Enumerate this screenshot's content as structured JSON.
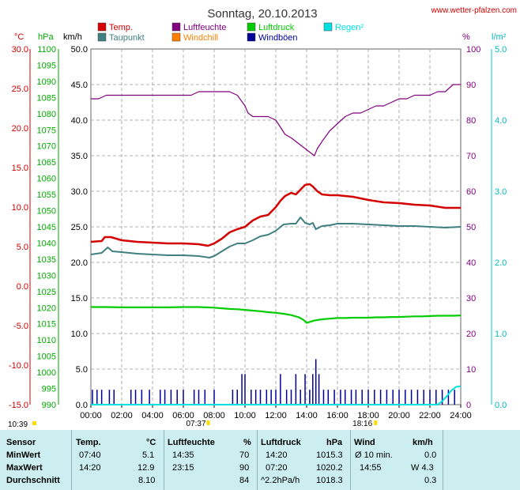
{
  "header": {
    "title": "Sonntag, 20.10.2013",
    "site": "www.wetter-pfalzen.com"
  },
  "legend": [
    {
      "label": "Temp.",
      "color": "#d40000"
    },
    {
      "label": "Luftfeuchte",
      "color": "#800080"
    },
    {
      "label": "Luftdruck",
      "color": "#00cc00"
    },
    {
      "label": "Regen²",
      "color": "#00e0e0"
    },
    {
      "label": "Taupunkt",
      "color": "#3f7f7f"
    },
    {
      "label": "Windchill",
      "color": "#ff8000"
    },
    {
      "label": "Windböen",
      "color": "#000099"
    }
  ],
  "axis_units": {
    "temp": "°C",
    "pressure": "hPa",
    "wind": "km/h",
    "humidity": "%",
    "rain": "l/m²"
  },
  "sun": {
    "sunrise_label": "07:37",
    "sunset_label": "18:16",
    "left_time": "10:39"
  },
  "chart_data": {
    "type": "line",
    "x_unit": "hours",
    "xlim": [
      0,
      24
    ],
    "x_ticks": [
      "00:00",
      "02:00",
      "04:00",
      "06:00",
      "08:00",
      "10:00",
      "12:00",
      "14:00",
      "16:00",
      "18:00",
      "20:00",
      "22:00",
      "24:00"
    ],
    "axes": {
      "temp": {
        "range": [
          -15,
          30
        ],
        "ticks": [
          "30.0",
          "25.0",
          "20.0",
          "15.0",
          "10.0",
          "5.0",
          "0.0",
          "-5.0",
          "-10.0",
          "-15.0"
        ],
        "color": "#d40000"
      },
      "pressure": {
        "range": [
          990,
          1100
        ],
        "ticks": [
          "1100",
          "1095",
          "1090",
          "1085",
          "1080",
          "1075",
          "1070",
          "1065",
          "1060",
          "1055",
          "1050",
          "1045",
          "1040",
          "1035",
          "1030",
          "1025",
          "1020",
          "1015",
          "1010",
          "1005",
          "1000",
          "995",
          "990"
        ],
        "color": "#00aa00"
      },
      "wind": {
        "range": [
          0,
          50
        ],
        "ticks": [
          "50.0",
          "45.0",
          "40.0",
          "35.0",
          "30.0",
          "25.0",
          "20.0",
          "15.0",
          "10.0",
          "5.0",
          "0.0"
        ],
        "color": "#000000"
      },
      "humidity": {
        "range": [
          0,
          100
        ],
        "ticks": [
          "100",
          "90",
          "80",
          "70",
          "60",
          "50",
          "40",
          "30",
          "20",
          "10",
          "0"
        ],
        "color": "#800080"
      },
      "rain": {
        "range": [
          0,
          5
        ],
        "ticks": [
          "5.0",
          "4.0",
          "3.0",
          "2.0",
          "1.0",
          "0.0"
        ],
        "color": "#00cccc"
      }
    },
    "series": [
      {
        "name": "Temp.",
        "axis": "temp",
        "color": "#d40000",
        "x": [
          0,
          0.7,
          0.9,
          1.3,
          2,
          3,
          4,
          5,
          6,
          7,
          7.6,
          8,
          8.5,
          9,
          9.5,
          10,
          10.5,
          11,
          11.5,
          12,
          12.3,
          12.6,
          13,
          13.3,
          13.6,
          13.9,
          14.2,
          14.4,
          14.7,
          15,
          15.5,
          16,
          17,
          18,
          19,
          20,
          21,
          22,
          23,
          24
        ],
        "y": [
          5.6,
          5.7,
          6.2,
          6.2,
          5.8,
          5.6,
          5.5,
          5.4,
          5.4,
          5.3,
          5.1,
          5.4,
          6.0,
          6.8,
          7.2,
          7.5,
          8.3,
          8.8,
          9.0,
          10.0,
          10.8,
          11.4,
          11.8,
          11.6,
          12.2,
          12.8,
          12.9,
          12.6,
          12.0,
          11.6,
          11.5,
          11.5,
          11.3,
          10.9,
          10.6,
          10.5,
          10.3,
          10.2,
          9.9,
          9.9
        ]
      },
      {
        "name": "Taupunkt",
        "axis": "temp",
        "color": "#3f7f7f",
        "x": [
          0,
          0.7,
          1.1,
          1.4,
          2,
          3,
          4,
          5,
          6,
          7,
          7.7,
          8,
          8.5,
          9,
          9.5,
          10,
          10.5,
          11,
          11.5,
          12,
          12.5,
          13,
          13.3,
          13.6,
          13.9,
          14.2,
          14.4,
          14.6,
          15,
          15.5,
          16,
          17,
          18,
          19,
          20,
          21,
          22,
          23,
          24
        ],
        "y": [
          4.0,
          4.2,
          4.9,
          4.4,
          4.3,
          4.1,
          4.0,
          3.9,
          3.9,
          3.8,
          3.6,
          3.8,
          4.4,
          5.0,
          5.4,
          5.4,
          5.8,
          6.3,
          6.5,
          7.0,
          7.8,
          7.9,
          7.9,
          8.7,
          8.0,
          7.8,
          8.0,
          7.2,
          7.6,
          7.7,
          7.9,
          7.9,
          7.8,
          7.7,
          7.6,
          7.6,
          7.5,
          7.4,
          7.5
        ]
      },
      {
        "name": "Luftfeuchte",
        "axis": "humidity",
        "color": "#800080",
        "x": [
          0,
          0.5,
          1,
          1.5,
          2,
          3,
          4,
          5,
          6,
          6.5,
          7,
          7.5,
          8,
          9,
          9.5,
          10,
          10.2,
          10.5,
          11,
          11.5,
          12,
          12.3,
          12.6,
          13,
          13.3,
          13.6,
          13.9,
          14.2,
          14.5,
          14.7,
          15,
          15.5,
          16,
          16.5,
          17,
          17.5,
          18,
          18.5,
          19,
          19.5,
          20,
          20.5,
          21,
          21.5,
          22,
          22.5,
          23,
          23.5,
          24
        ],
        "y": [
          86,
          86,
          87,
          87,
          87,
          87,
          87,
          87,
          87,
          87,
          88,
          88,
          88,
          88,
          87,
          84,
          82,
          81,
          81,
          81,
          80,
          78,
          76,
          75,
          74,
          73,
          72,
          71,
          70,
          72,
          74,
          77,
          79,
          81,
          82,
          82,
          83,
          84,
          84,
          85,
          86,
          86,
          87,
          87,
          87,
          88,
          88,
          90,
          90
        ]
      },
      {
        "name": "Luftdruck",
        "axis": "pressure",
        "color": "#00cc00",
        "x": [
          0,
          1,
          2,
          3,
          4,
          5,
          6,
          7,
          7.5,
          8,
          8.5,
          9,
          9.5,
          10,
          10.5,
          11,
          11.5,
          12,
          12.5,
          13,
          13.5,
          13.8,
          14,
          14.2,
          14.5,
          15,
          15.5,
          16,
          16.5,
          17,
          17.5,
          18,
          18.5,
          19,
          19.5,
          20,
          20.5,
          21,
          21.5,
          22,
          22.5,
          23,
          23.5,
          24
        ],
        "y": [
          1020.2,
          1020.2,
          1020.1,
          1020.1,
          1020.1,
          1020.1,
          1020.2,
          1020.2,
          1020.1,
          1020.0,
          1019.8,
          1019.6,
          1019.5,
          1019.3,
          1019.1,
          1018.9,
          1018.6,
          1018.4,
          1018.1,
          1017.7,
          1017.0,
          1016.2,
          1015.3,
          1015.6,
          1016.0,
          1016.4,
          1016.6,
          1016.8,
          1016.8,
          1016.9,
          1016.9,
          1016.9,
          1017.0,
          1017.0,
          1017.1,
          1017.1,
          1017.2,
          1017.3,
          1017.3,
          1017.4,
          1017.5,
          1017.5,
          1017.5,
          1017.6
        ]
      },
      {
        "name": "Windböen",
        "axis": "wind",
        "color": "#000099",
        "style": "bars",
        "x": [
          0.1,
          0.4,
          0.7,
          1.2,
          1.5,
          2.6,
          2.9,
          3.3,
          3.8,
          4.5,
          4.8,
          5.2,
          5.6,
          6.0,
          6.7,
          7.0,
          7.4,
          8.0,
          9.2,
          9.5,
          9.8,
          10.0,
          10.4,
          10.7,
          11.0,
          11.4,
          11.7,
          12.0,
          12.3,
          12.7,
          13.0,
          13.3,
          13.6,
          13.9,
          14.2,
          14.4,
          14.6,
          14.8,
          15.1,
          15.4,
          15.8,
          16.2,
          16.5,
          16.9,
          17.2,
          17.6,
          18.0,
          18.4,
          18.8,
          19.2,
          19.6,
          20.0,
          20.4,
          20.8,
          21.2,
          21.6,
          22.0,
          22.4,
          22.8,
          23.2,
          23.6
        ],
        "y": [
          2.1,
          2.1,
          2.1,
          2.1,
          2.1,
          2.1,
          2.1,
          2.1,
          2.1,
          2.1,
          2.1,
          2.1,
          2.1,
          2.1,
          2.1,
          2.1,
          2.1,
          2.1,
          2.1,
          2.1,
          4.3,
          4.3,
          2.1,
          2.1,
          2.1,
          2.1,
          2.1,
          2.1,
          4.3,
          2.1,
          2.1,
          4.3,
          2.1,
          4.3,
          2.1,
          4.3,
          6.4,
          4.3,
          2.1,
          2.1,
          2.1,
          2.1,
          2.1,
          2.1,
          2.1,
          2.1,
          2.1,
          2.1,
          2.1,
          2.1,
          2.1,
          2.1,
          2.1,
          2.1,
          2.1,
          2.1,
          2.1,
          2.1,
          2.1,
          2.1,
          2.1
        ]
      },
      {
        "name": "Regen²",
        "axis": "rain",
        "color": "#00e0e0",
        "x": [
          0,
          22.5,
          22.8,
          23.1,
          23.4,
          23.7,
          24
        ],
        "y": [
          0,
          0,
          0.05,
          0.12,
          0.2,
          0.25,
          0.26
        ]
      }
    ]
  },
  "table": {
    "headers": [
      "Sensor",
      "Temp.",
      "°C",
      "Luftfeuchte",
      "%",
      "Luftdruck",
      "hPa",
      "Wind",
      "km/h"
    ],
    "rows": [
      {
        "label": "MinWert",
        "t_time": "07:40",
        "t_val": "5.1",
        "h_time": "14:35",
        "h_val": "70",
        "p_time": "14:20",
        "p_val": "1015.3",
        "w_time": "Ø 10 min.",
        "w_val": "0.0"
      },
      {
        "label": "MaxWert",
        "t_time": "14:20",
        "t_val": "12.9",
        "h_time": "23:15",
        "h_val": "90",
        "p_time": "07:20",
        "p_val": "1020.2",
        "w_time": "14:55",
        "w_val": "W 4.3"
      },
      {
        "label": "Durchschnitt",
        "t_time": "",
        "t_val": "8.10",
        "h_time": "",
        "h_val": "84",
        "p_time": "^2.2hPa/h",
        "p_val": "1018.3",
        "w_time": "",
        "w_val": "0.3"
      }
    ]
  }
}
